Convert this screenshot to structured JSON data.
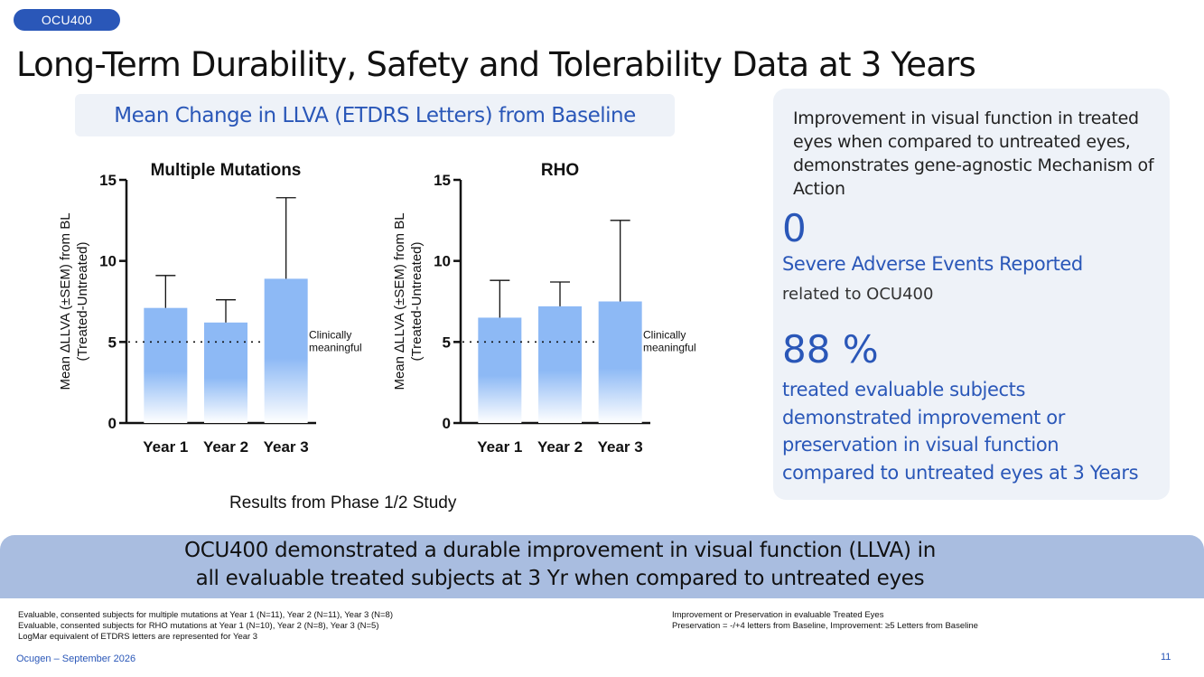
{
  "header": {
    "tag": "OCU400",
    "title": "Long-Term Durability, Safety and Tolerability Data at 3 Years",
    "subtitle": "Mean Change in LLVA (ETDRS Letters) from Baseline"
  },
  "chart_data": [
    {
      "type": "bar",
      "title": "Multiple Mutations",
      "ylabel_line1": "Mean ∆LLVA (±SEM) from BL",
      "ylabel_line2": "(Treated-Untreated)",
      "categories": [
        "Year 1",
        "Year 2",
        "Year 3"
      ],
      "values": [
        7.1,
        6.2,
        8.9
      ],
      "errors": [
        2.0,
        1.4,
        5.0
      ],
      "ylim": [
        0,
        15
      ],
      "yticks": [
        "0",
        "5",
        "10",
        "15"
      ],
      "reference_line": {
        "value": 5,
        "label_line1": "Clinically",
        "label_line2": "meaningful"
      },
      "bar_color": "#8db9f5"
    },
    {
      "type": "bar",
      "title": "RHO",
      "ylabel_line1": "Mean ∆LLVA (±SEM)  from BL",
      "ylabel_line2": "(Treated-Untreated)",
      "categories": [
        "Year 1",
        "Year 2",
        "Year 3"
      ],
      "values": [
        6.5,
        7.2,
        7.5
      ],
      "errors": [
        2.3,
        1.5,
        5.0
      ],
      "ylim": [
        0,
        15
      ],
      "yticks": [
        "0",
        "5",
        "10",
        "15"
      ],
      "reference_line": {
        "value": 5,
        "label_line1": "Clinically",
        "label_line2": "meaningful"
      },
      "bar_color": "#8db9f5"
    }
  ],
  "chart_caption": "Results from Phase 1/2  Study",
  "panel": {
    "intro": "Improvement in visual function in  treated eyes when compared to untreated eyes, demonstrates gene-agnostic Mechanism of Action",
    "stat1_value": "0",
    "stat1_label": "Severe Adverse Events Reported",
    "stat1_sub": "related to OCU400",
    "stat2_value": "88 %",
    "stat2_lines": [
      "treated evaluable subjects",
      "demonstrated improvement or",
      "preservation in visual function",
      "compared to untreated eyes at 3  Years"
    ]
  },
  "banner": {
    "line1": "OCU400 demonstrated a durable improvement in visual function (LLVA) in",
    "line2": "all evaluable treated subjects at 3 Yr when compared to untreated eyes"
  },
  "footnotes_left": [
    "Evaluable, consented subjects for multiple mutations at Year 1 (N=11), Year 2 (N=11), Year 3 (N=8)",
    "Evaluable, consented subjects for RHO mutations at Year 1 (N=10), Year 2 (N=8), Year 3 (N=5)",
    "LogMar equivalent of ETDRS letters are represented for Year 3"
  ],
  "footnotes_right": [
    "Improvement or Preservation in evaluable Treated Eyes",
    "Preservation = -/+4 letters from Baseline,  Improvement: ≥5 Letters from Baseline"
  ],
  "footer": {
    "left": "Ocugen – September 2026",
    "page": "11"
  },
  "colors": {
    "brand_blue": "#2a57b8",
    "panel_bg": "#eef2f8",
    "banner_bg": "#a9bde0"
  }
}
